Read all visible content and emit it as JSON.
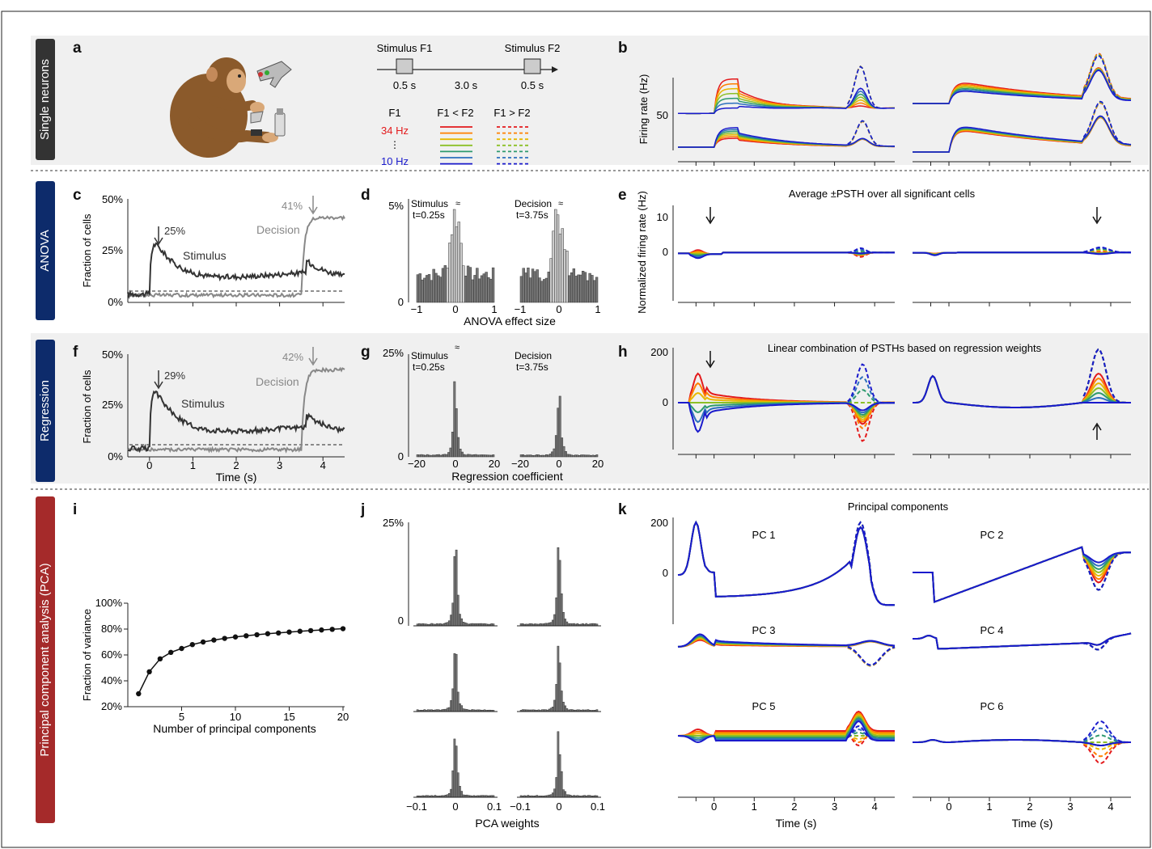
{
  "rows": {
    "single": "Single neurons",
    "anova": "ANOVA",
    "regression": "Regression",
    "pca": "Principal component analysis (PCA)"
  },
  "panel_letters": [
    "a",
    "b",
    "c",
    "d",
    "e",
    "f",
    "g",
    "h",
    "i",
    "j",
    "k"
  ],
  "task": {
    "stim1": "Stimulus F1",
    "stim2": "Stimulus F2",
    "d1": "0.5 s",
    "gap": "3.0 s",
    "d2": "0.5 s",
    "h_f1": "F1",
    "h_lt": "F1 < F2",
    "h_gt": "F1 > F2",
    "hi_freq": "34 Hz",
    "dots": "⋮",
    "lo_freq": "10 Hz"
  },
  "colors": {
    "conditions": [
      "#e31a1c",
      "#ff7f00",
      "#e6b800",
      "#8cbf26",
      "#2e9a6e",
      "#2c6fbd",
      "#1a1acc"
    ],
    "title_row_dark": "#333333",
    "title_row_blue": "#0d2b6b",
    "title_row_red": "#a52a2a",
    "stimulus_trace": "#333333",
    "decision_trace": "#888888"
  },
  "b": {
    "ylabel": "Firing rate (Hz)",
    "tick": "50"
  },
  "c": {
    "ylabel": "Fraction of cells",
    "yticks": [
      "50%",
      "25%",
      "0%"
    ],
    "stimulus": "Stimulus",
    "decision": "Decision",
    "peak_s": "25%",
    "peak_d": "41%"
  },
  "d": {
    "yticks": [
      "5%",
      "0"
    ],
    "left_label": "Stimulus",
    "left_time": "t=0.25s",
    "right_label": "Decision",
    "right_time": "t=3.75s",
    "xticks": [
      "−1",
      "0",
      "1"
    ],
    "xlabel": "ANOVA effect size"
  },
  "e": {
    "title": "Average ±PSTH over all significant cells",
    "ylabel": "Normalized firing rate (Hz)",
    "yticks": [
      "10",
      "0"
    ]
  },
  "f": {
    "ylabel": "Fraction of cells",
    "yticks": [
      "50%",
      "25%",
      "0%"
    ],
    "stimulus": "Stimulus",
    "decision": "Decision",
    "peak_s": "29%",
    "peak_d": "42%",
    "xticks": [
      "0",
      "1",
      "2",
      "3",
      "4"
    ],
    "xlabel": "Time (s)"
  },
  "g": {
    "yticks": [
      "25%",
      "0"
    ],
    "left_label": "Stimulus",
    "left_time": "t=0.25s",
    "right_label": "Decision",
    "right_time": "t=3.75s",
    "xticks": [
      "−20",
      "0",
      "20"
    ],
    "xlabel": "Regression coefficient"
  },
  "h": {
    "title": "Linear combination of PSTHs based on regression weights",
    "yticks": [
      "200",
      "0"
    ]
  },
  "i": {
    "ylabel": "Fraction of variance",
    "yticks": [
      "100%",
      "80%",
      "60%",
      "40%",
      "20%"
    ],
    "xticks": [
      "5",
      "10",
      "15",
      "20"
    ],
    "xlabel": "Number of principal components"
  },
  "j": {
    "yticks": [
      "25%",
      "0"
    ],
    "xticks": [
      "−0.1",
      "0",
      "0.1"
    ],
    "xlabel": "PCA weights"
  },
  "k": {
    "title": "Principal components",
    "yticks": [
      "200",
      "0"
    ],
    "pcs": [
      "PC 1",
      "PC 2",
      "PC 3",
      "PC 4",
      "PC 5",
      "PC 6"
    ],
    "xticks": [
      "0",
      "1",
      "2",
      "3",
      "4"
    ],
    "xlabel": "Time (s)"
  },
  "chart_data": [
    {
      "type": "line",
      "xlabel": "Number of principal components",
      "ylabel": "Fraction of variance",
      "x": [
        1,
        2,
        3,
        4,
        5,
        6,
        7,
        8,
        9,
        10,
        11,
        12,
        13,
        14,
        15,
        16,
        17,
        18,
        19,
        20
      ],
      "values": [
        30,
        47,
        57,
        62,
        65,
        68,
        70,
        71.5,
        72.8,
        73.9,
        74.8,
        75.6,
        76.4,
        77,
        77.7,
        78.3,
        78.8,
        79.3,
        79.8,
        80.3
      ],
      "xlim": [
        0,
        20
      ],
      "ylim": [
        20,
        100
      ]
    }
  ]
}
